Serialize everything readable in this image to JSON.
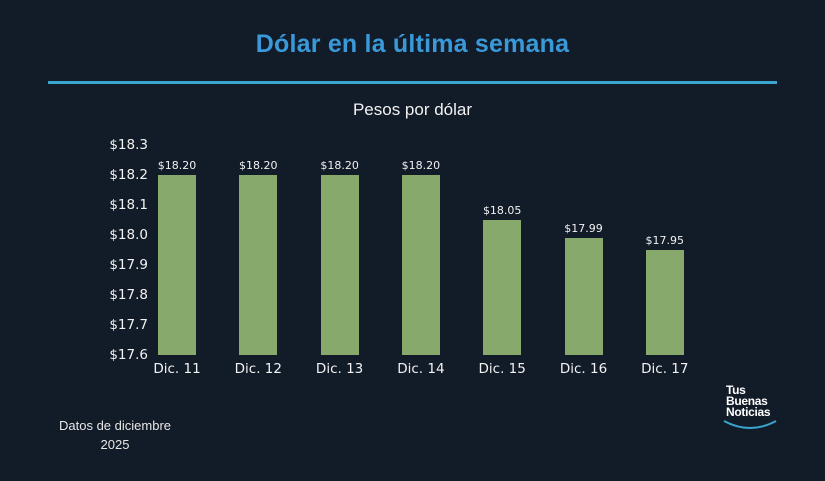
{
  "header": {
    "title": "Dólar en la última semana",
    "accent_color": "#3a9ad9"
  },
  "footer": {
    "note_line1": "Datos de diciembre",
    "note_line2": "2025",
    "logo_line1": "Tus",
    "logo_line2": "Buenas",
    "logo_line3": "Noticias"
  },
  "chart_data": {
    "type": "bar",
    "title": "Pesos por dólar",
    "xlabel": "",
    "ylabel": "",
    "categories": [
      "Dic. 11",
      "Dic. 12",
      "Dic. 13",
      "Dic. 14",
      "Dic. 15",
      "Dic. 16",
      "Dic. 17"
    ],
    "values": [
      18.2,
      18.2,
      18.2,
      18.2,
      18.05,
      17.99,
      17.95
    ],
    "value_labels": [
      "$18.20",
      "$18.20",
      "$18.20",
      "$18.20",
      "$18.05",
      "$17.99",
      "$17.95"
    ],
    "ylim": [
      17.6,
      18.3
    ],
    "yticks": [
      "$17.6",
      "$17.7",
      "$17.8",
      "$17.9",
      "$18.0",
      "$18.1",
      "$18.2",
      "$18.3"
    ],
    "grid": false,
    "legend": null,
    "bar_color": "#87a96b"
  }
}
